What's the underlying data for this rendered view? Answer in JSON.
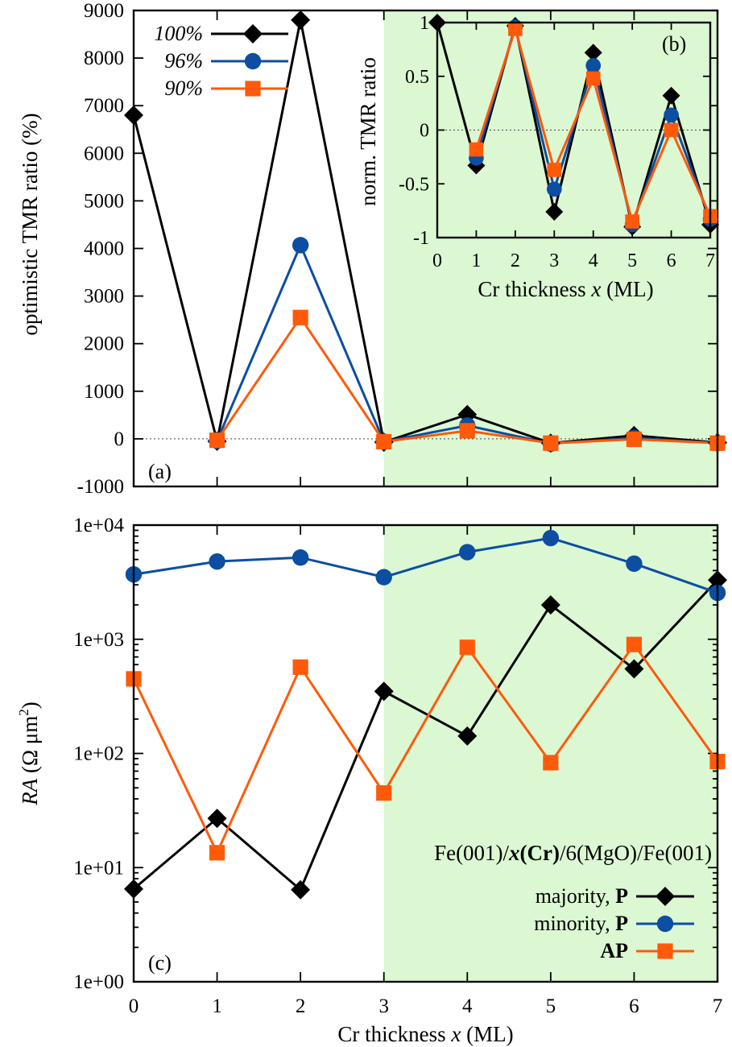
{
  "colors": {
    "black_series": "#000000",
    "blue_series": "#0b4ea2",
    "orange_series": "#ff5a0a",
    "shade": "#dcf8d3"
  },
  "chart_data": [
    {
      "id": "a",
      "type": "line",
      "panel_label": "(a)",
      "ylabel": "optimistic TMR ratio (%)",
      "xlim": [
        0,
        7
      ],
      "ylim": [
        -1000,
        9000
      ],
      "yticks": [
        "-1000",
        "0",
        "1000",
        "2000",
        "3000",
        "4000",
        "5000",
        "6000",
        "7000",
        "8000",
        "9000"
      ],
      "ytick_values": [
        -1000,
        0,
        1000,
        2000,
        3000,
        4000,
        5000,
        6000,
        7000,
        8000,
        9000
      ],
      "shaded_x_range": [
        3,
        7
      ],
      "legend_position": "top-left",
      "x": [
        0,
        1,
        2,
        3,
        4,
        5,
        6,
        7
      ],
      "series": [
        {
          "name": "100%",
          "marker": "diamond",
          "color": "#000000",
          "values": [
            6800,
            -50,
            8800,
            -70,
            510,
            -90,
            70,
            -80
          ]
        },
        {
          "name": "96%",
          "marker": "circle",
          "color": "#0b4ea2",
          "values": [
            null,
            -40,
            4070,
            -60,
            280,
            -100,
            20,
            -90
          ]
        },
        {
          "name": "90%",
          "marker": "square",
          "color": "#ff5a0a",
          "values": [
            null,
            -30,
            2550,
            -60,
            170,
            -90,
            -10,
            -90
          ]
        }
      ]
    },
    {
      "id": "b",
      "type": "line",
      "panel_label": "(b)",
      "ylabel": "norm. TMR ratio",
      "xlabel_prefix": "Cr thickness ",
      "xlabel_var": "x",
      "xlabel_suffix": " (ML)",
      "xlim": [
        0,
        7
      ],
      "ylim": [
        -1,
        1
      ],
      "xticks": [
        "0",
        "1",
        "2",
        "3",
        "4",
        "5",
        "6",
        "7"
      ],
      "yticks": [
        "-1",
        "-0.5",
        "0",
        "0.5",
        "1"
      ],
      "ytick_values": [
        -1,
        -0.5,
        0,
        0.5,
        1
      ],
      "x": [
        0,
        1,
        2,
        3,
        4,
        5,
        6,
        7
      ],
      "series": [
        {
          "name": "100%",
          "marker": "diamond",
          "color": "#000000",
          "values": [
            1,
            -0.33,
            0.97,
            -0.76,
            0.72,
            -0.9,
            0.32,
            -0.88
          ]
        },
        {
          "name": "96%",
          "marker": "circle",
          "color": "#0b4ea2",
          "values": [
            null,
            -0.26,
            0.96,
            -0.55,
            0.6,
            -0.88,
            0.14,
            -0.83
          ]
        },
        {
          "name": "90%",
          "marker": "square",
          "color": "#ff5a0a",
          "values": [
            null,
            -0.18,
            0.94,
            -0.37,
            0.48,
            -0.85,
            0.0,
            -0.8
          ]
        }
      ]
    },
    {
      "id": "c",
      "type": "line",
      "panel_label": "(c)",
      "yscale": "log",
      "ylabel_var": "RA",
      "ylabel_rest": " (Ω μm",
      "ylabel_sup": "2",
      "ylabel_close": ")",
      "xlabel_prefix": "Cr thickness ",
      "xlabel_var": "x",
      "xlabel_suffix": " (ML)",
      "xlim": [
        0,
        7
      ],
      "ylim": [
        1,
        10000
      ],
      "xticks": [
        "0",
        "1",
        "2",
        "3",
        "4",
        "5",
        "6",
        "7"
      ],
      "yticks": [
        "1e+00",
        "1e+01",
        "1e+02",
        "1e+03",
        "1e+04"
      ],
      "ytick_values": [
        1,
        10,
        100,
        1000,
        10000
      ],
      "shaded_x_range": [
        3,
        7
      ],
      "annotation": {
        "p1": "Fe(001)/",
        "p2": "x",
        "p3": "(Cr)",
        "p4": "/6(MgO)/Fe(001)"
      },
      "legend_position": "bottom-right",
      "x": [
        0,
        1,
        2,
        3,
        4,
        5,
        6,
        7
      ],
      "series": [
        {
          "name_plain": "majority, ",
          "name_bold": "P",
          "marker": "diamond",
          "color": "#000000",
          "values": [
            6.5,
            27,
            6.4,
            350,
            142,
            2000,
            550,
            3300
          ]
        },
        {
          "name_plain": "minority, ",
          "name_bold": "P",
          "marker": "circle",
          "color": "#0b4ea2",
          "values": [
            3700,
            4800,
            5200,
            3500,
            5800,
            7700,
            4600,
            2550
          ]
        },
        {
          "name_plain": "",
          "name_bold": "AP",
          "marker": "square",
          "color": "#ff5a0a",
          "values": [
            450,
            13.5,
            570,
            45,
            850,
            83,
            900,
            85
          ]
        }
      ]
    }
  ]
}
